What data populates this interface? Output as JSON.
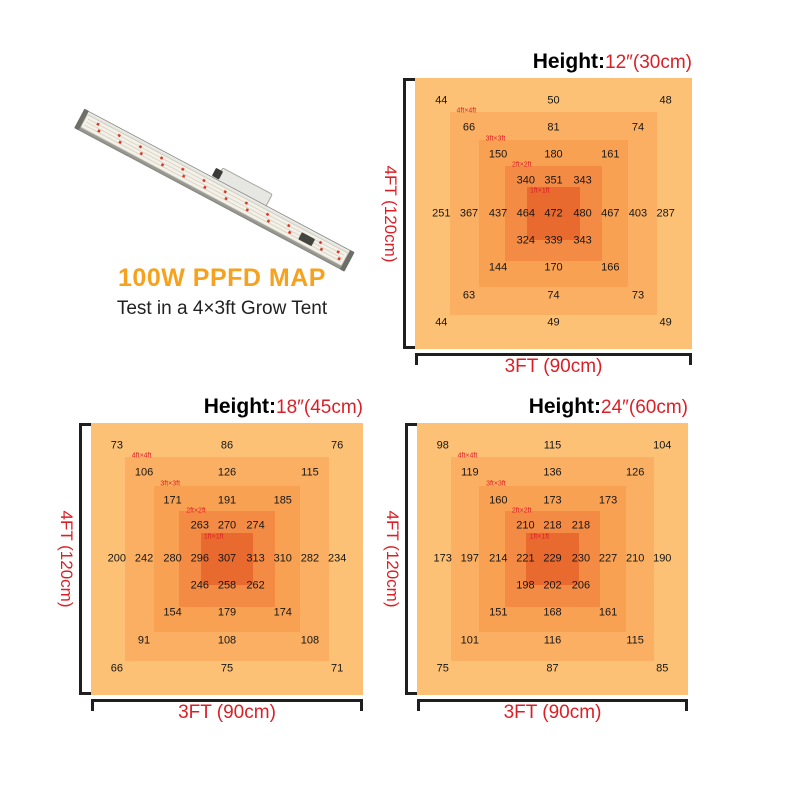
{
  "fixture": {
    "title": "100W PPFD MAP",
    "subtitle": "Test in a 4×3ft Grow Tent",
    "title_color": "#F6A21E"
  },
  "labels": {
    "height_prefix": "Height:"
  },
  "colors": {
    "red_text": "#DB1F26",
    "bracket": "#1F1F1F",
    "value_text": "#161616",
    "zone_fills": [
      "#FCC175",
      "#FBAF62",
      "#F9A152",
      "#F48B44",
      "#E96A2F"
    ]
  },
  "chart_data": [
    {
      "type": "heatmap",
      "title": "Height: 12″(30cm)",
      "height_label": "12″(30cm)",
      "xlabel": "3FT (90cm)",
      "ylabel": "4FT (120cm)",
      "zone_labels": [
        "4ft×4ft",
        "3ft×3ft",
        "2ft×2ft",
        "1ft×1ft"
      ],
      "grid": [
        [
          44,
          null,
          null,
          null,
          50,
          null,
          null,
          null,
          48
        ],
        [
          null,
          66,
          null,
          null,
          81,
          null,
          null,
          74,
          null
        ],
        [
          null,
          null,
          150,
          null,
          180,
          null,
          161,
          null,
          null
        ],
        [
          null,
          null,
          null,
          340,
          351,
          343,
          null,
          null,
          null
        ],
        [
          251,
          367,
          437,
          464,
          472,
          480,
          467,
          403,
          287
        ],
        [
          null,
          null,
          null,
          324,
          339,
          343,
          null,
          null,
          null
        ],
        [
          null,
          null,
          144,
          null,
          170,
          null,
          166,
          null,
          null
        ],
        [
          null,
          63,
          null,
          null,
          74,
          null,
          null,
          73,
          null
        ],
        [
          44,
          null,
          null,
          null,
          49,
          null,
          null,
          null,
          49
        ]
      ]
    },
    {
      "type": "heatmap",
      "title": "Height: 18″(45cm)",
      "height_label": "18″(45cm)",
      "xlabel": "3FT (90cm)",
      "ylabel": "4FT (120cm)",
      "zone_labels": [
        "4ft×4ft",
        "3ft×3ft",
        "2ft×2ft",
        "1ft×1ft"
      ],
      "grid": [
        [
          73,
          null,
          null,
          null,
          86,
          null,
          null,
          null,
          76
        ],
        [
          null,
          106,
          null,
          null,
          126,
          null,
          null,
          115,
          null
        ],
        [
          null,
          null,
          171,
          null,
          191,
          null,
          185,
          null,
          null
        ],
        [
          null,
          null,
          null,
          263,
          270,
          274,
          null,
          null,
          null
        ],
        [
          200,
          242,
          280,
          296,
          307,
          313,
          310,
          282,
          234
        ],
        [
          null,
          null,
          null,
          246,
          258,
          262,
          null,
          null,
          null
        ],
        [
          null,
          null,
          154,
          null,
          179,
          null,
          174,
          null,
          null
        ],
        [
          null,
          91,
          null,
          null,
          108,
          null,
          null,
          108,
          null
        ],
        [
          66,
          null,
          null,
          null,
          75,
          null,
          null,
          null,
          71
        ]
      ]
    },
    {
      "type": "heatmap",
      "title": "Height: 24″(60cm)",
      "height_label": "24″(60cm)",
      "xlabel": "3FT (90cm)",
      "ylabel": "4FT (120cm)",
      "zone_labels": [
        "4ft×4ft",
        "3ft×3ft",
        "2ft×2ft",
        "1ft×1ft"
      ],
      "grid": [
        [
          98,
          null,
          null,
          null,
          115,
          null,
          null,
          null,
          104
        ],
        [
          null,
          119,
          null,
          null,
          136,
          null,
          null,
          126,
          null
        ],
        [
          null,
          null,
          160,
          null,
          173,
          null,
          173,
          null,
          null
        ],
        [
          null,
          null,
          null,
          210,
          218,
          218,
          null,
          null,
          null
        ],
        [
          173,
          197,
          214,
          221,
          229,
          230,
          227,
          210,
          190
        ],
        [
          null,
          null,
          null,
          198,
          202,
          206,
          null,
          null,
          null
        ],
        [
          null,
          null,
          151,
          null,
          168,
          null,
          161,
          null,
          null
        ],
        [
          null,
          101,
          null,
          null,
          116,
          null,
          null,
          115,
          null
        ],
        [
          75,
          null,
          null,
          null,
          87,
          null,
          null,
          null,
          85
        ]
      ]
    }
  ]
}
